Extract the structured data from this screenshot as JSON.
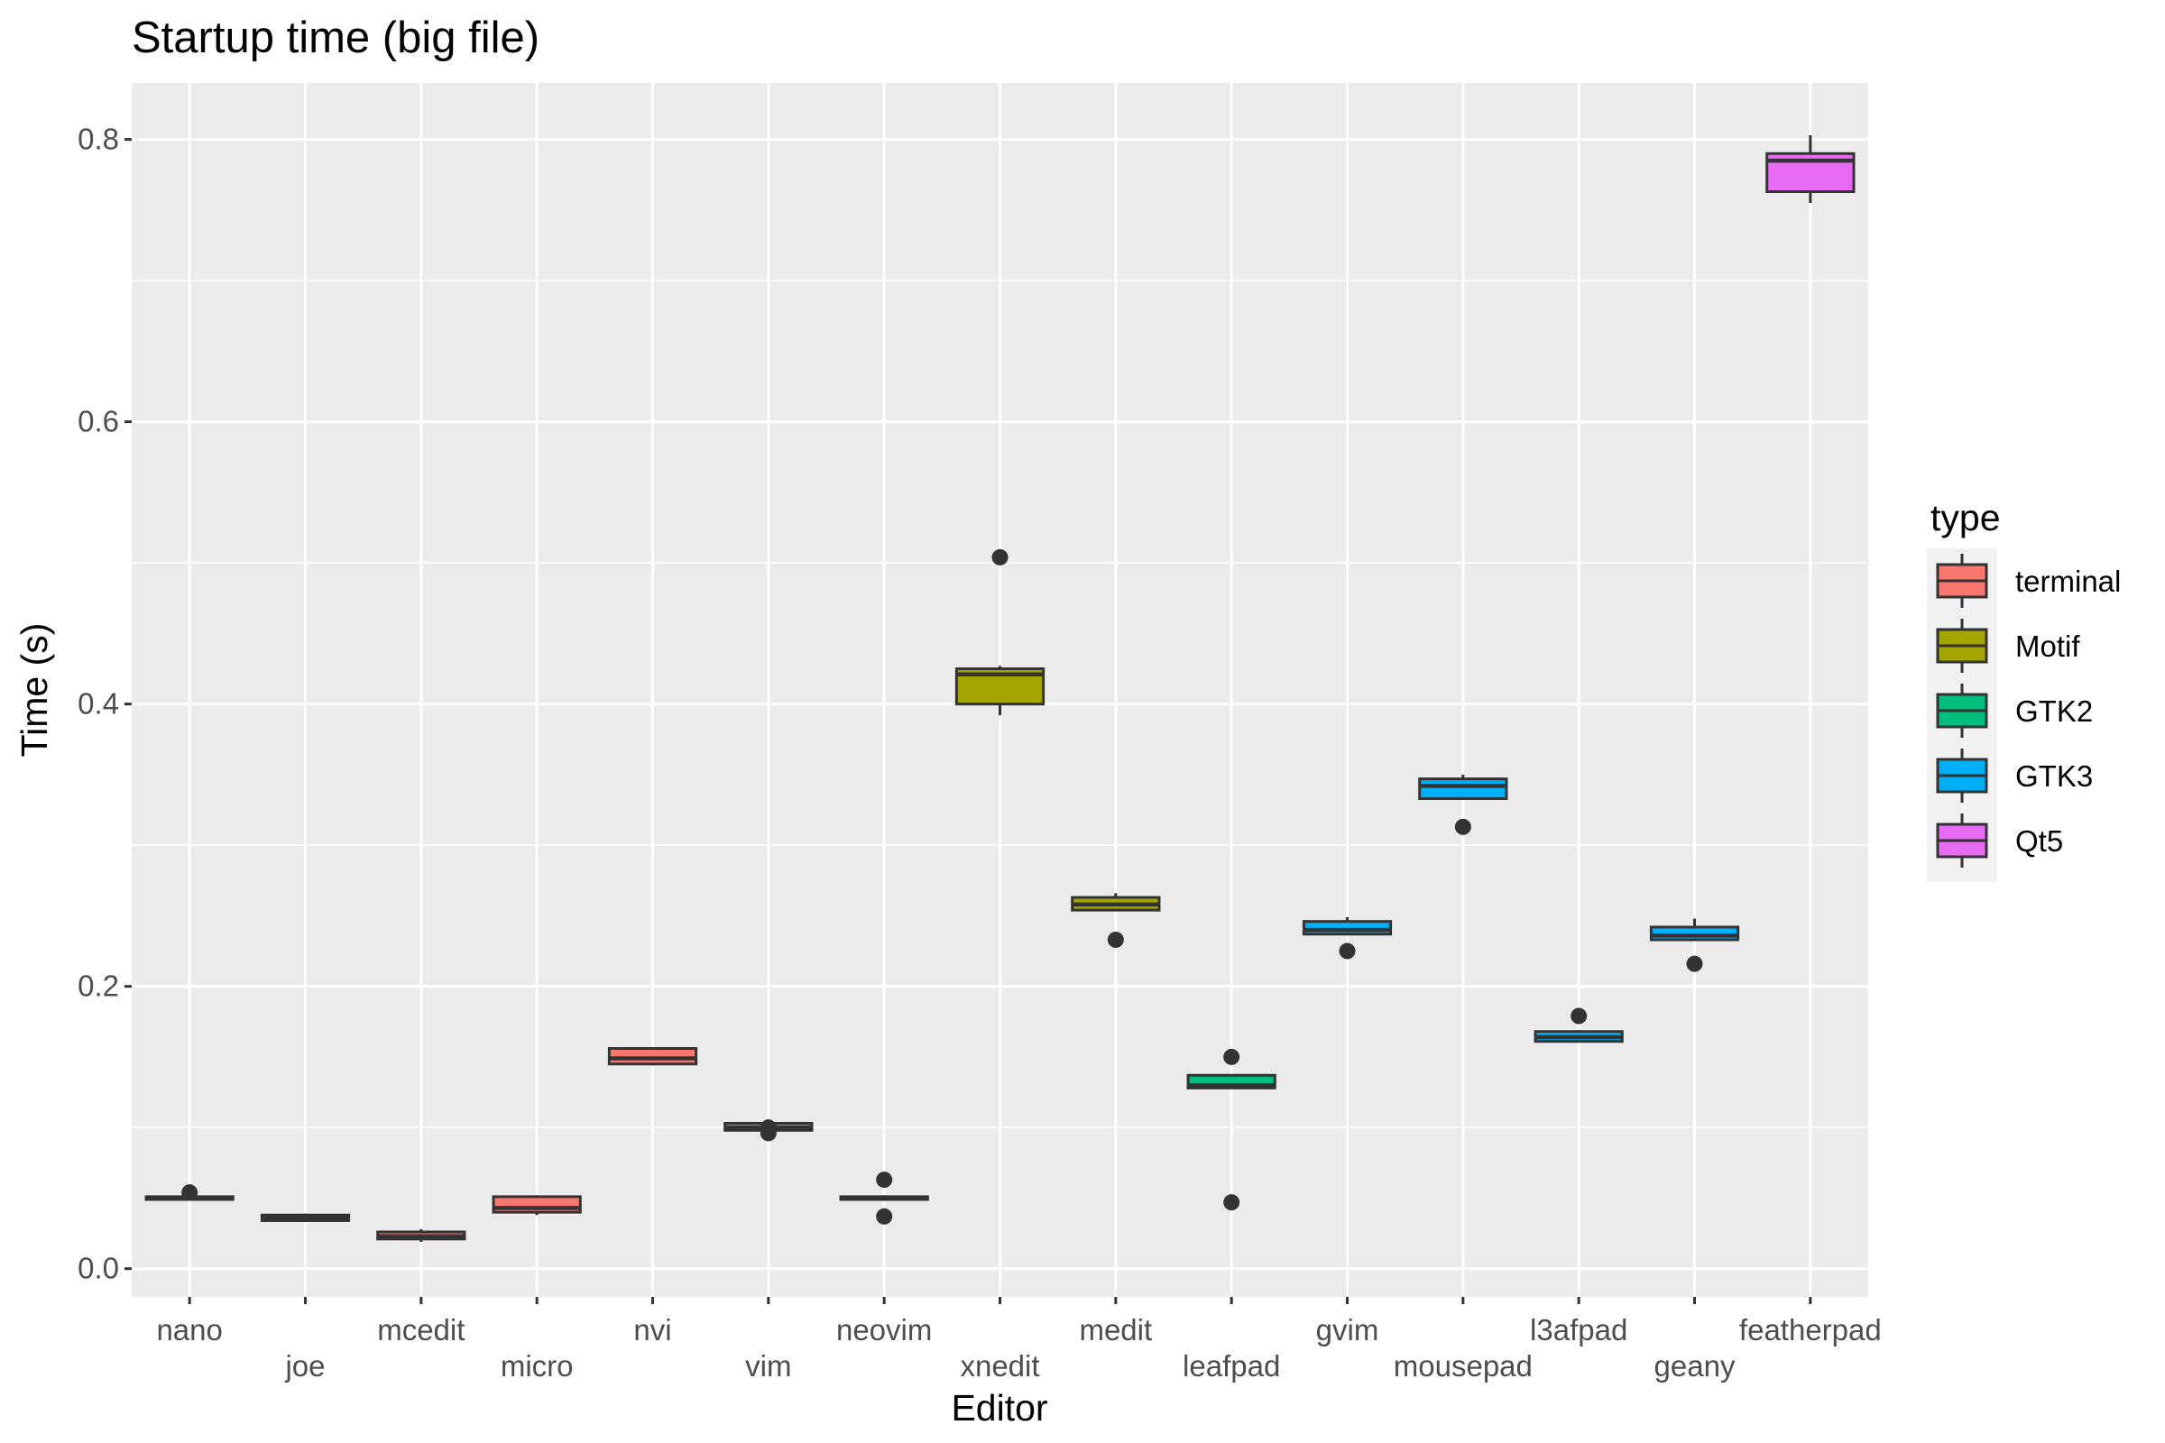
{
  "chart_data": {
    "type": "boxplot",
    "title": "Startup time (big file)",
    "xlabel": "Editor",
    "ylabel": "Time (s)",
    "ylim": [
      -0.02,
      0.84
    ],
    "yticks": [
      0.0,
      0.2,
      0.4,
      0.6,
      0.8
    ],
    "ytick_labels": [
      "0.0",
      "0.2",
      "0.4",
      "0.6",
      "0.8"
    ],
    "grid": true,
    "legend": {
      "title": "type",
      "position": "right",
      "entries": [
        {
          "label": "terminal",
          "color": "#F8766D"
        },
        {
          "label": "Motif",
          "color": "#A3A500"
        },
        {
          "label": "GTK2",
          "color": "#00BF7D"
        },
        {
          "label": "GTK3",
          "color": "#00B0F6"
        },
        {
          "label": "Qt5",
          "color": "#E76BF3"
        }
      ]
    },
    "categories": [
      "nano",
      "joe",
      "mcedit",
      "micro",
      "nvi",
      "vim",
      "neovim",
      "xnedit",
      "medit",
      "leafpad",
      "gvim",
      "mousepad",
      "l3afpad",
      "geany",
      "featherpad"
    ],
    "boxes": [
      {
        "editor": "nano",
        "type": "terminal",
        "whisker_low": 0.049,
        "q1": 0.049,
        "median": 0.05,
        "q3": 0.051,
        "whisker_high": 0.052,
        "outliers": [
          0.054
        ]
      },
      {
        "editor": "joe",
        "type": "terminal",
        "whisker_low": 0.033,
        "q1": 0.034,
        "median": 0.036,
        "q3": 0.038,
        "whisker_high": 0.039,
        "outliers": []
      },
      {
        "editor": "mcedit",
        "type": "terminal",
        "whisker_low": 0.019,
        "q1": 0.021,
        "median": 0.023,
        "q3": 0.026,
        "whisker_high": 0.028,
        "outliers": []
      },
      {
        "editor": "micro",
        "type": "terminal",
        "whisker_low": 0.038,
        "q1": 0.04,
        "median": 0.043,
        "q3": 0.051,
        "whisker_high": 0.052,
        "outliers": []
      },
      {
        "editor": "nvi",
        "type": "terminal",
        "whisker_low": 0.144,
        "q1": 0.145,
        "median": 0.149,
        "q3": 0.156,
        "whisker_high": 0.156,
        "outliers": []
      },
      {
        "editor": "vim",
        "type": "terminal",
        "whisker_low": 0.098,
        "q1": 0.098,
        "median": 0.1,
        "q3": 0.103,
        "whisker_high": 0.104,
        "outliers": [
          0.096,
          0.1
        ]
      },
      {
        "editor": "neovim",
        "type": "terminal",
        "whisker_low": 0.049,
        "q1": 0.049,
        "median": 0.05,
        "q3": 0.051,
        "whisker_high": 0.052,
        "outliers": [
          0.063,
          0.037
        ]
      },
      {
        "editor": "xnedit",
        "type": "Motif",
        "whisker_low": 0.392,
        "q1": 0.4,
        "median": 0.421,
        "q3": 0.425,
        "whisker_high": 0.427,
        "outliers": [
          0.504
        ]
      },
      {
        "editor": "medit",
        "type": "Motif",
        "whisker_low": 0.254,
        "q1": 0.254,
        "median": 0.258,
        "q3": 0.263,
        "whisker_high": 0.266,
        "outliers": [
          0.233
        ]
      },
      {
        "editor": "leafpad",
        "type": "GTK2",
        "whisker_low": 0.128,
        "q1": 0.128,
        "median": 0.13,
        "q3": 0.137,
        "whisker_high": 0.137,
        "outliers": [
          0.15,
          0.047
        ]
      },
      {
        "editor": "gvim",
        "type": "GTK3",
        "whisker_low": 0.237,
        "q1": 0.237,
        "median": 0.24,
        "q3": 0.246,
        "whisker_high": 0.249,
        "outliers": [
          0.225
        ]
      },
      {
        "editor": "mousepad",
        "type": "GTK3",
        "whisker_low": 0.333,
        "q1": 0.333,
        "median": 0.342,
        "q3": 0.347,
        "whisker_high": 0.35,
        "outliers": [
          0.313
        ]
      },
      {
        "editor": "l3afpad",
        "type": "GTK3",
        "whisker_low": 0.161,
        "q1": 0.161,
        "median": 0.164,
        "q3": 0.168,
        "whisker_high": 0.169,
        "outliers": [
          0.179
        ]
      },
      {
        "editor": "geany",
        "type": "GTK3",
        "whisker_low": 0.233,
        "q1": 0.233,
        "median": 0.236,
        "q3": 0.242,
        "whisker_high": 0.248,
        "outliers": [
          0.216
        ]
      },
      {
        "editor": "featherpad",
        "type": "Qt5",
        "whisker_low": 0.755,
        "q1": 0.763,
        "median": 0.785,
        "q3": 0.79,
        "whisker_high": 0.803,
        "outliers": []
      }
    ]
  }
}
